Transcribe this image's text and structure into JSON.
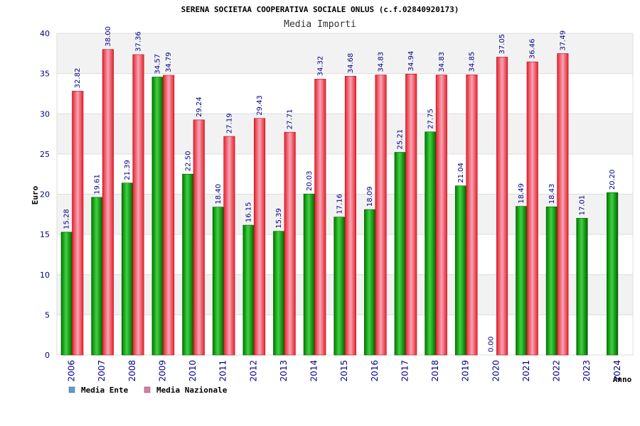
{
  "chart_data": {
    "type": "bar",
    "title": "SERENA SOCIETAA COOPERATIVA SOCIALE ONLUS (c.f.02840920173)",
    "subtitle": "Media Importi",
    "xlabel": "Anno",
    "ylabel": "Euro",
    "ylim": [
      0,
      40
    ],
    "yticks": [
      0,
      5,
      10,
      15,
      20,
      25,
      30,
      35,
      40
    ],
    "grid": true,
    "legend": "bottom-left",
    "categories": [
      "2006",
      "2007",
      "2008",
      "2009",
      "2010",
      "2011",
      "2012",
      "2013",
      "2014",
      "2015",
      "2016",
      "2017",
      "2018",
      "2019",
      "2020",
      "2021",
      "2022",
      "2023",
      "2024"
    ],
    "series": [
      {
        "name": "Media Ente",
        "color": "#00a000",
        "legend_color": "#5b9bd5",
        "values": [
          15.28,
          19.61,
          21.39,
          34.57,
          22.5,
          18.4,
          16.15,
          15.39,
          20.03,
          17.16,
          18.09,
          25.21,
          27.75,
          21.04,
          0.0,
          18.49,
          18.43,
          17.01,
          20.2
        ],
        "labels": [
          "15.28",
          "19.61",
          "21.39",
          "34.57",
          "22.50",
          "18.40",
          "16.15",
          "15.39",
          "20.03",
          "17.16",
          "18.09",
          "25.21",
          "27.75",
          "21.04",
          "0.00",
          "18.49",
          "18.43",
          "17.01",
          "20.20"
        ]
      },
      {
        "name": "Media Nazionale",
        "color": "#e8202a",
        "legend_color": "#e07aa8",
        "values": [
          32.82,
          38.0,
          37.36,
          34.79,
          29.24,
          27.19,
          29.43,
          27.71,
          34.32,
          34.68,
          34.83,
          34.94,
          34.83,
          34.85,
          37.05,
          36.46,
          37.49,
          null,
          null
        ],
        "labels": [
          "32.82",
          "38.00",
          "37.36",
          "34.79",
          "29.24",
          "27.19",
          "29.43",
          "27.71",
          "34.32",
          "34.68",
          "34.83",
          "34.94",
          "34.83",
          "34.85",
          "37.05",
          "36.46",
          "37.49",
          null,
          null
        ]
      }
    ]
  }
}
